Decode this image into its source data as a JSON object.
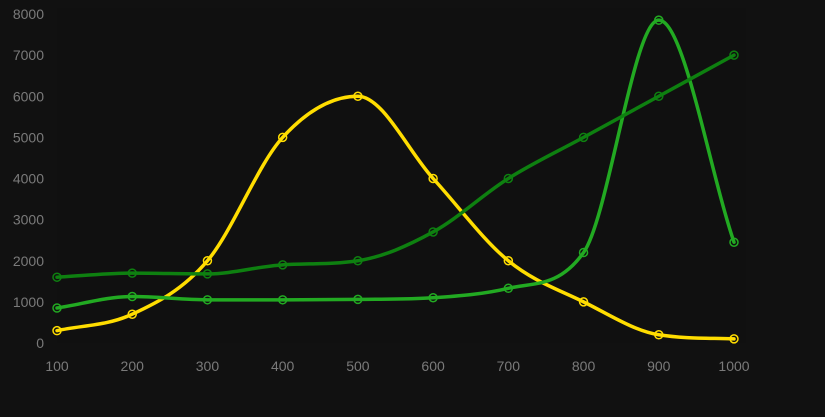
{
  "chart_data": {
    "type": "line",
    "title": "",
    "xlabel": "",
    "ylabel": "",
    "x": [
      100,
      200,
      300,
      400,
      500,
      600,
      700,
      800,
      900,
      1000
    ],
    "x_ticks": [
      "100",
      "200",
      "300",
      "400",
      "500",
      "600",
      "700",
      "800",
      "900",
      "1000"
    ],
    "y_ticks": [
      "0",
      "1000",
      "2000",
      "3000",
      "4000",
      "5000",
      "6000",
      "7000",
      "8000"
    ],
    "xlim": [
      100,
      1000
    ],
    "ylim": [
      0,
      8000
    ],
    "grid": false,
    "legend": "none",
    "smooth": true,
    "background": "#111111",
    "series": [
      {
        "color": "#ffdd00",
        "values": [
          300,
          700,
          2000,
          5000,
          6000,
          4000,
          2000,
          1000,
          200,
          100
        ]
      },
      {
        "color": "#22aa22",
        "values": [
          850,
          1130,
          1050,
          1050,
          1060,
          1100,
          1330,
          2200,
          7850,
          2450
        ]
      },
      {
        "color": "#0e8010",
        "values": [
          1600,
          1700,
          1680,
          1900,
          2000,
          2700,
          4000,
          5000,
          6000,
          7000
        ]
      }
    ]
  }
}
